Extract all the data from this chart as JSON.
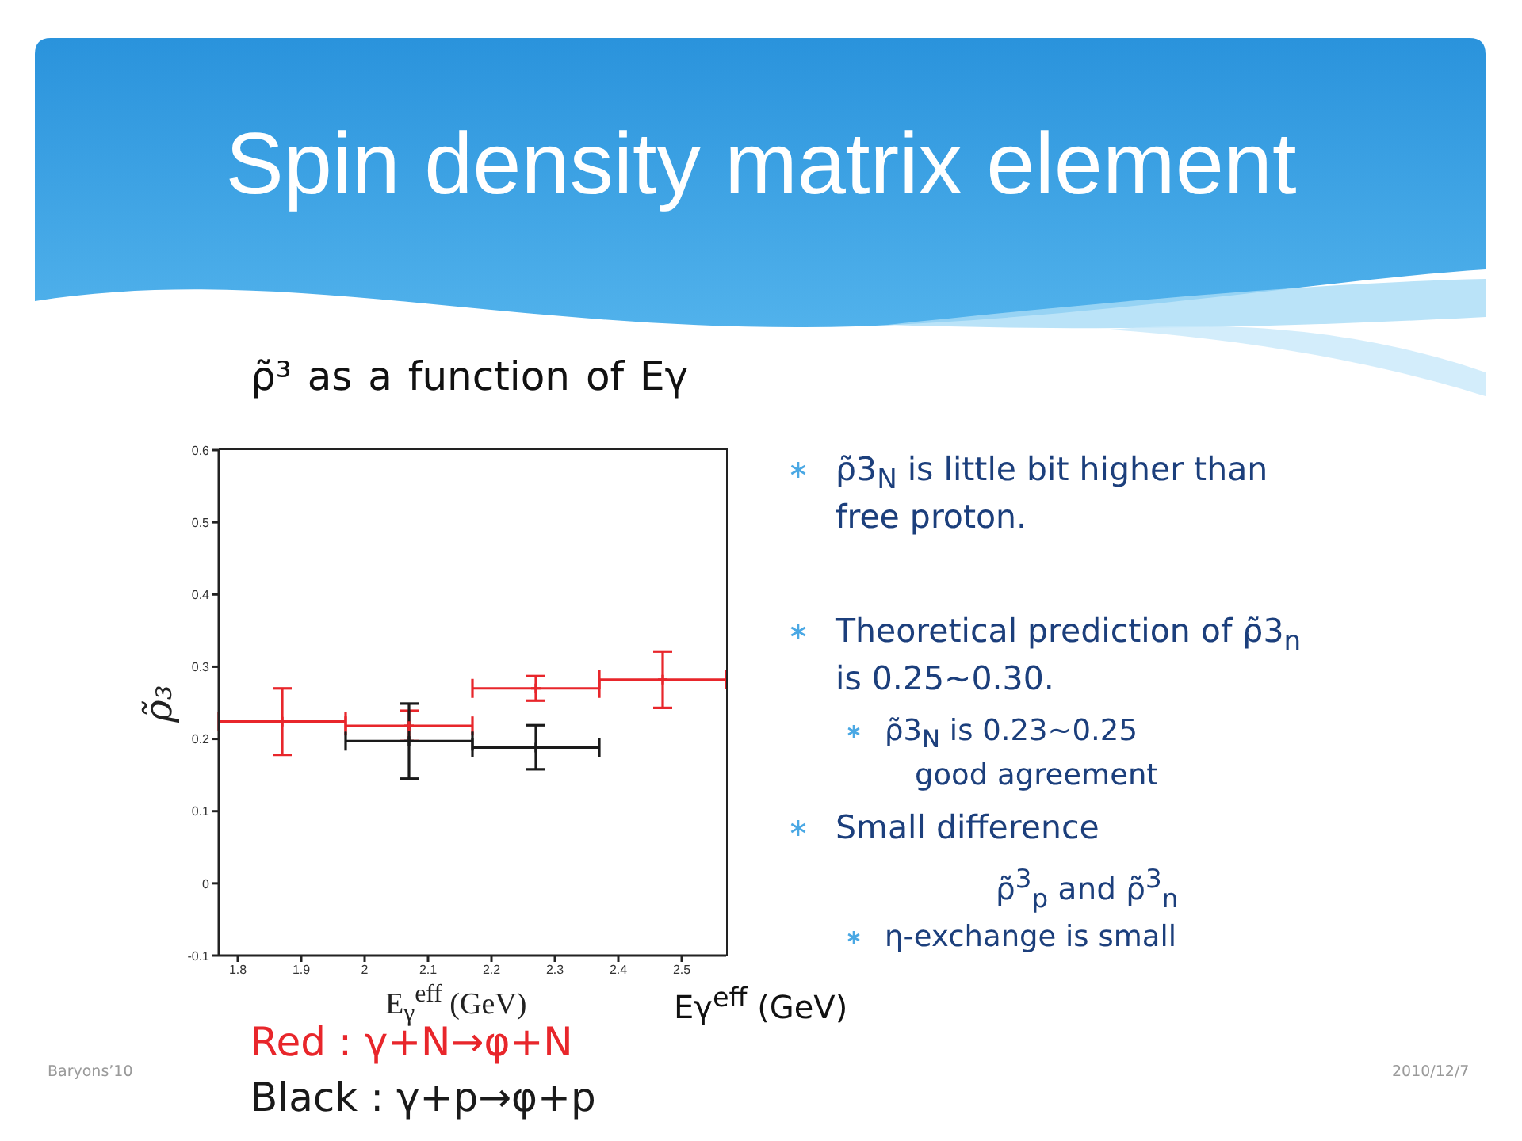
{
  "chart_data": {
    "type": "scatter",
    "title": "Spin density matrix element",
    "subtitle": "ρ̃³ as a function of Eγ",
    "xlabel": "E$_{γ}$$^{eff}$ (GeV)",
    "ylabel": "ρ̃₃",
    "xlim": [
      1.77,
      2.57
    ],
    "xticks": [
      1.8,
      1.9,
      2,
      2.1,
      2.2,
      2.3,
      2.4,
      2.5
    ],
    "ylim": [
      -0.1,
      0.6
    ],
    "yticks": [
      -0.1,
      0,
      0.1,
      0.2,
      0.3,
      0.4,
      0.5,
      0.6
    ],
    "marker": "cross",
    "series": [
      {
        "name": "Red : γ+N→φ+N",
        "color": "#e8262b",
        "x": [
          1.87,
          2.07,
          2.27,
          2.47
        ],
        "values": [
          0.224,
          0.218,
          0.27,
          0.282
        ],
        "errors": [
          [
            0.178,
            0.27
          ],
          [
            0.197,
            0.239
          ],
          [
            0.253,
            0.287
          ],
          [
            0.243,
            0.321
          ]
        ],
        "xerrors": [
          0.1,
          0.1,
          0.1,
          0.1
        ]
      },
      {
        "name": "Black : γ+p→φ+p",
        "color": "#1a1a1a",
        "x": [
          2.07,
          2.27
        ],
        "values": [
          0.197,
          0.188
        ],
        "errors": [
          [
            0.145,
            0.249
          ],
          [
            0.158,
            0.219
          ]
        ],
        "xerrors": [
          0.1,
          0.1
        ]
      }
    ],
    "annotations": [
      "ρ̃3$_{N}$ is little bit higher than free proton.",
      "Theoretical prediction of ρ̃3$_{n}$ is 0.25~0.30.",
      "ρ̃3$_{N}$ is 0.23~0.25",
      "good agreement",
      "Small difference",
      "ρ̃$^{3}$$_{p}$ and ρ̃$^{3}$$_{n}$",
      "η-exchange is small",
      "Eγ$^{eff}$ (GeV)",
      "Baryons’10",
      "2010/12/7"
    ]
  }
}
